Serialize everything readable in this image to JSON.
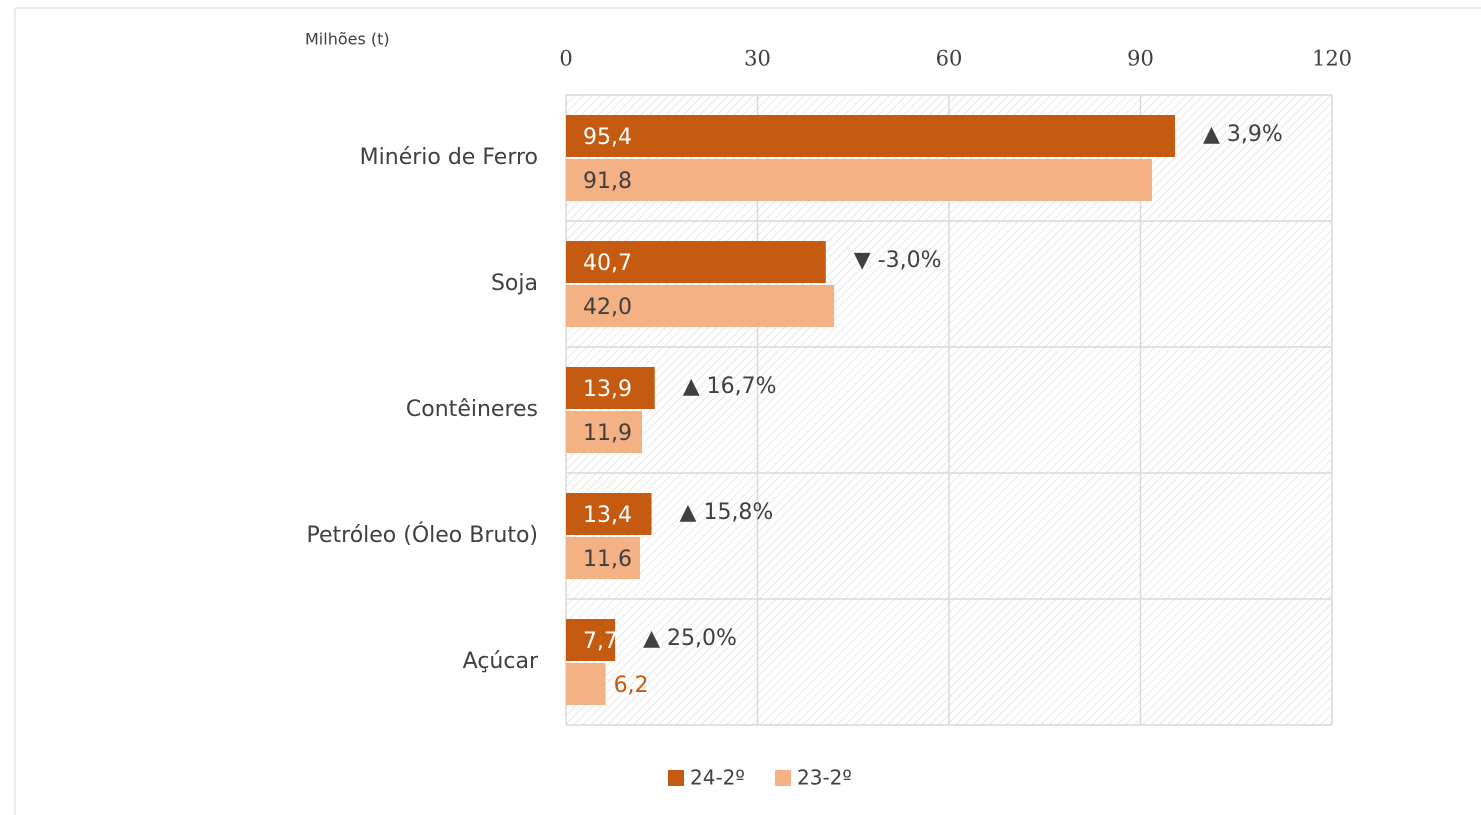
{
  "chart_data": {
    "type": "bar",
    "orientation": "horizontal",
    "axis_label": "Milhões (t)",
    "categories": [
      "Minério de Ferro",
      "Soja",
      "Contêineres",
      "Petróleo  (Óleo Bruto)",
      "Açúcar"
    ],
    "series": [
      {
        "name": "24-2º",
        "color": "#c55a11",
        "values": [
          95.4,
          40.7,
          13.9,
          13.4,
          7.7
        ],
        "value_labels": [
          "95,4",
          "40,7",
          "13,9",
          "13,4",
          "7,7"
        ]
      },
      {
        "name": "23-2º",
        "color": "#f4b183",
        "values": [
          91.8,
          42.0,
          11.9,
          11.6,
          6.2
        ],
        "value_labels": [
          "91,8",
          "42,0",
          "11,9",
          "11,6",
          "6,2"
        ]
      }
    ],
    "annotations": [
      "▲ 3,9%",
      "▼ -3,0%",
      "▲ 16,7%",
      "▲ 15,8%",
      "▲ 25,0%"
    ],
    "xlim": [
      0,
      120
    ],
    "xticks": [
      0,
      30,
      60,
      90,
      120
    ],
    "grid": true,
    "legend": "bottom"
  }
}
